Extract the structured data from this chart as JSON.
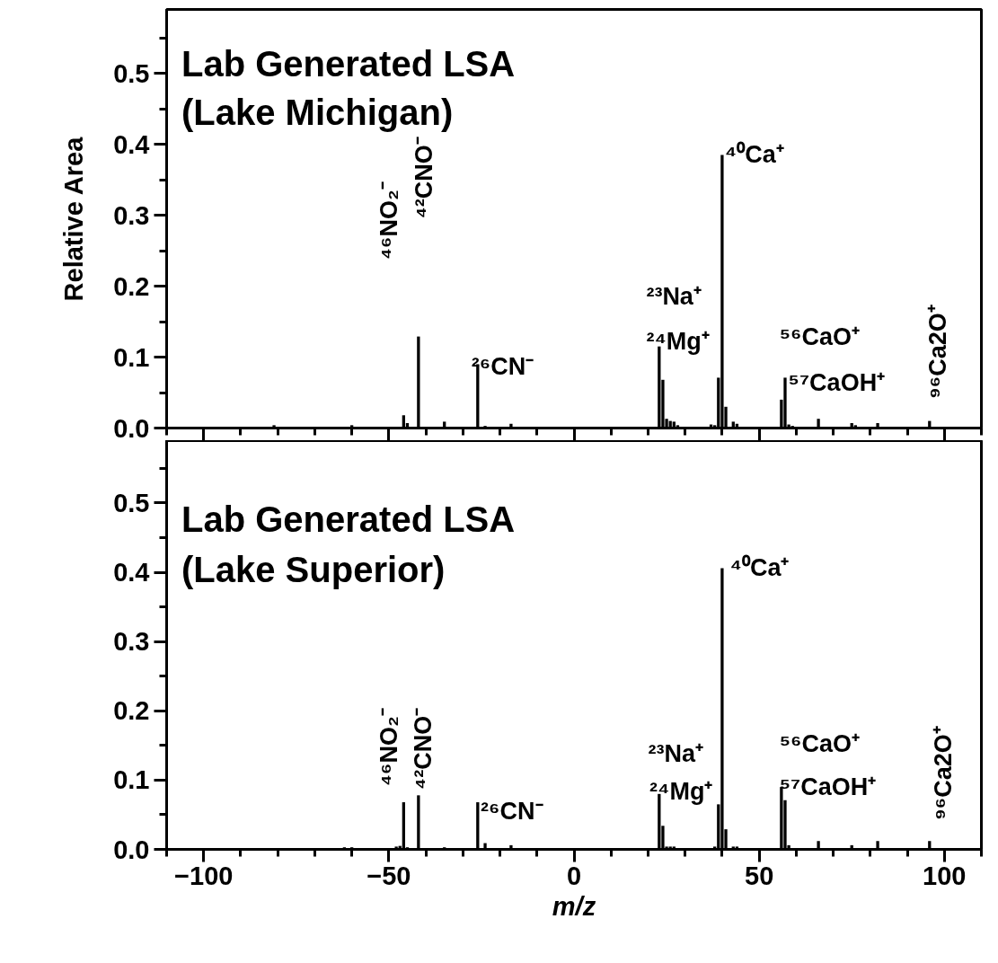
{
  "chart_data": [
    {
      "type": "bar",
      "title": "Lab Generated LSA\n(Lake Michigan)",
      "ylabel": "Relative Area",
      "color": "#000000",
      "tick_labels": "y",
      "x": [
        -81,
        -60,
        -46,
        -45,
        -42,
        -35,
        -26,
        -24,
        -17,
        23,
        24,
        25,
        26,
        27,
        28,
        37,
        38,
        39,
        40,
        41,
        43,
        44,
        56,
        57,
        58,
        59,
        66,
        75,
        76,
        82,
        96
      ],
      "values": [
        0.004,
        0.004,
        0.018,
        0.007,
        0.129,
        0.009,
        0.09,
        0.003,
        0.006,
        0.115,
        0.068,
        0.013,
        0.01,
        0.009,
        0.004,
        0.005,
        0.004,
        0.071,
        0.385,
        0.03,
        0.009,
        0.006,
        0.04,
        0.071,
        0.005,
        0.003,
        0.013,
        0.007,
        0.004,
        0.007,
        0.01
      ],
      "xlim": [
        -110,
        110
      ],
      "xticks": [
        -100,
        -50,
        0,
        50,
        100
      ],
      "ylim": [
        0,
        0.59
      ],
      "yticks": [
        {
          "value": 0,
          "label": "0.0"
        },
        0.1,
        0.2,
        0.3,
        0.4,
        0.5
      ],
      "annotations": [
        "⁴⁶NO₂⁻",
        "⁴²CNO⁻",
        {
          "text": "²⁶CN⁻",
          "x": -26,
          "y": 0.09
        },
        {
          "text": "²³Na⁺",
          "x": 23,
          "y": 0.115
        },
        {
          "text": "²⁴Mg⁺",
          "x": 24,
          "y": 0.068
        },
        {
          "text": "⁴⁰Ca⁺",
          "x": 40,
          "y": 0.385
        },
        {
          "text": "⁵⁶CaO⁺",
          "x": 56,
          "y": 0.04
        },
        {
          "text": "⁵⁷CaOH⁺",
          "x": 57,
          "y": 0.071
        },
        {
          "text": "⁹⁶Ca2O⁺",
          "x": 96,
          "y": 0.01
        }
      ]
    },
    {
      "type": "bar",
      "title": "Lab Generated LSA\n(Lake Superior)",
      "xlabel": "m/z",
      "color": "#000000",
      "x": [
        -62,
        -60,
        -48,
        -47,
        -46,
        -45,
        -42,
        -35,
        -26,
        -24,
        -17,
        23,
        24,
        25,
        26,
        27,
        38,
        39,
        40,
        41,
        43,
        44,
        56,
        57,
        58,
        66,
        75,
        82,
        96
      ],
      "values": [
        0.003,
        0.003,
        0.004,
        0.005,
        0.068,
        0.003,
        0.078,
        0.003,
        0.068,
        0.009,
        0.006,
        0.08,
        0.034,
        0.004,
        0.004,
        0.004,
        0.004,
        0.065,
        0.406,
        0.029,
        0.004,
        0.004,
        0.09,
        0.071,
        0.006,
        0.012,
        0.006,
        0.012,
        0.012
      ],
      "xlim": [
        -110,
        110
      ],
      "xticks": [
        -100,
        -50,
        0,
        50,
        100
      ],
      "ylim": [
        0,
        0.59
      ],
      "yticks": [
        {
          "value": 0,
          "label": "0.0"
        },
        0.1,
        0.2,
        0.3,
        0.4,
        0.5
      ],
      "annotations": [
        {
          "text": "⁴⁶NO₂⁻",
          "x": -46,
          "y": 0.068
        },
        {
          "text": "⁴²CNO⁻",
          "x": -42,
          "y": 0.078
        },
        {
          "text": "²⁶CN⁻",
          "x": -26,
          "y": 0.068
        },
        {
          "text": "²³Na⁺",
          "x": 23,
          "y": 0.08
        },
        {
          "text": "²⁴Mg⁺",
          "x": 24,
          "y": 0.034
        },
        {
          "text": "⁴⁰Ca⁺",
          "x": 40,
          "y": 0.406
        },
        {
          "text": "⁵⁶CaO⁺",
          "x": 56,
          "y": 0.09
        },
        {
          "text": "⁵⁷CaOH⁺",
          "x": 57,
          "y": 0.071
        },
        {
          "text": "⁹⁶Ca2O⁺",
          "x": 96,
          "y": 0.012
        }
      ]
    }
  ]
}
